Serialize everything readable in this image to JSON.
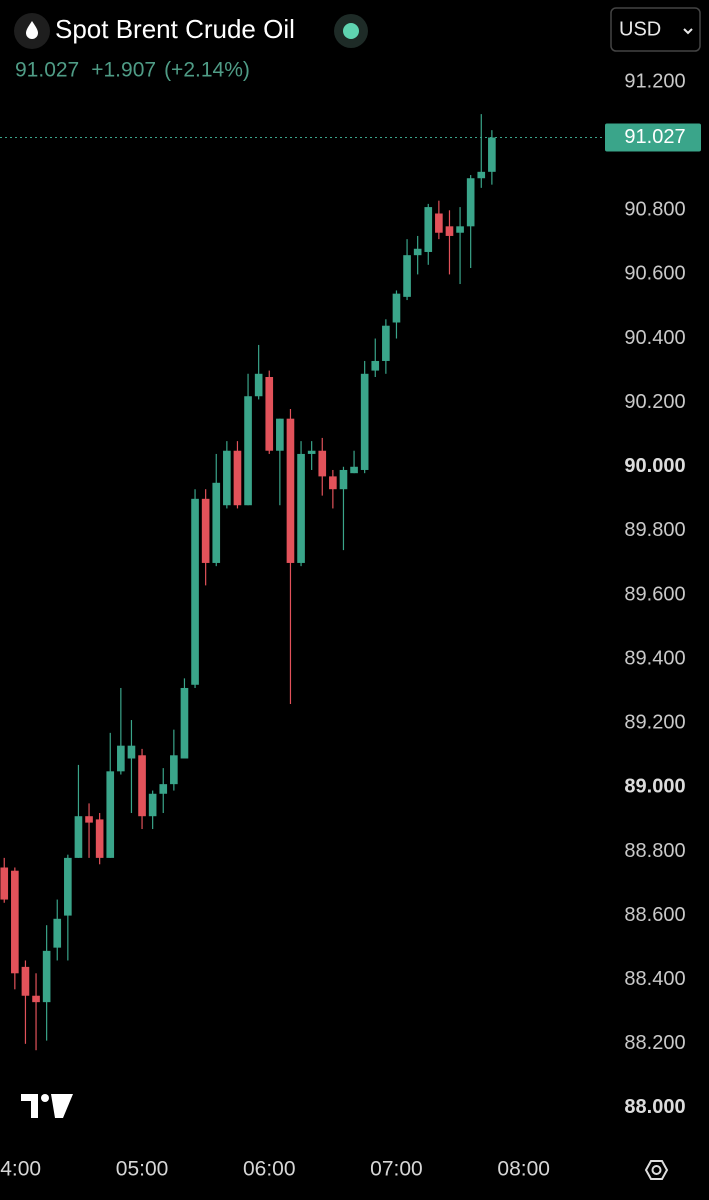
{
  "chart_data": {
    "type": "candlestick",
    "title": "Spot Brent Crude Oil",
    "last": 91.027,
    "change": "+1.907",
    "change_percent": "(+2.14%)",
    "currency": "USD",
    "up_color": "#3aa58a",
    "down_color": "#e2525a",
    "x": [
      "03:55",
      "04:00",
      "04:05",
      "04:10",
      "04:15",
      "04:20",
      "04:25",
      "04:30",
      "04:35",
      "04:40",
      "04:45",
      "04:50",
      "04:55",
      "05:00",
      "05:05",
      "05:10",
      "05:15",
      "05:20",
      "05:25",
      "05:30",
      "05:35",
      "05:40",
      "05:45",
      "05:50",
      "05:55",
      "06:00",
      "06:05",
      "06:10",
      "06:15",
      "06:20",
      "06:25",
      "06:30",
      "06:35",
      "06:40",
      "06:45",
      "06:50",
      "06:55",
      "07:00",
      "07:05",
      "07:10",
      "07:15",
      "07:20",
      "07:25",
      "07:30",
      "07:35",
      "07:40",
      "07:45"
    ],
    "open": [
      88.75,
      88.74,
      88.44,
      88.35,
      88.33,
      88.5,
      88.6,
      88.78,
      88.91,
      88.9,
      88.78,
      89.05,
      89.09,
      89.1,
      88.91,
      88.98,
      89.01,
      89.09,
      89.32,
      89.9,
      89.7,
      89.88,
      90.05,
      89.88,
      90.22,
      90.28,
      90.05,
      90.15,
      89.7,
      90.04,
      90.05,
      89.97,
      89.93,
      89.98,
      89.99,
      90.3,
      90.33,
      90.45,
      90.53,
      90.66,
      90.67,
      90.79,
      90.75,
      90.73,
      90.75,
      90.9,
      90.92
    ],
    "high": [
      88.78,
      88.75,
      88.46,
      88.42,
      88.57,
      88.65,
      88.79,
      89.07,
      88.95,
      88.92,
      89.17,
      89.31,
      89.21,
      89.12,
      88.99,
      89.06,
      89.18,
      89.34,
      89.93,
      89.93,
      90.04,
      90.08,
      90.08,
      90.29,
      90.38,
      90.3,
      90.15,
      90.18,
      90.08,
      90.08,
      90.09,
      89.99,
      90.0,
      90.05,
      90.33,
      90.4,
      90.46,
      90.55,
      90.71,
      90.72,
      90.82,
      90.83,
      90.8,
      90.81,
      90.91,
      91.1,
      91.05
    ],
    "low": [
      88.64,
      88.37,
      88.2,
      88.18,
      88.21,
      88.46,
      88.46,
      88.78,
      88.78,
      88.76,
      88.78,
      89.04,
      88.92,
      88.87,
      88.87,
      88.92,
      88.99,
      89.09,
      89.31,
      89.63,
      89.69,
      89.87,
      89.87,
      89.88,
      90.21,
      90.04,
      89.88,
      89.26,
      89.69,
      89.99,
      89.91,
      89.87,
      89.74,
      89.98,
      89.98,
      90.28,
      90.29,
      90.4,
      90.52,
      90.6,
      90.63,
      90.71,
      90.6,
      90.57,
      90.62,
      90.87,
      90.88
    ],
    "close": [
      88.65,
      88.42,
      88.35,
      88.33,
      88.49,
      88.59,
      88.78,
      88.91,
      88.89,
      88.78,
      89.05,
      89.13,
      89.13,
      88.91,
      88.98,
      89.01,
      89.1,
      89.31,
      89.9,
      89.7,
      89.95,
      90.05,
      89.88,
      90.22,
      90.29,
      90.05,
      90.15,
      89.7,
      90.04,
      90.05,
      89.97,
      89.93,
      89.99,
      90.0,
      90.29,
      90.33,
      90.44,
      90.54,
      90.66,
      90.68,
      90.81,
      90.73,
      90.72,
      90.75,
      90.9,
      90.92,
      91.027
    ],
    "xlim": [
      "03:53",
      "08:36"
    ],
    "xticks": [
      "04:00",
      "05:00",
      "06:00",
      "07:00",
      "08:00"
    ],
    "ylim": [
      87.9,
      91.3
    ],
    "yticks": [
      {
        "value": 88,
        "label": "88.000"
      },
      {
        "value": 88.2,
        "label": "88.200"
      },
      {
        "value": 88.4,
        "label": "88.400"
      },
      {
        "value": 88.6,
        "label": "88.600"
      },
      {
        "value": 88.8,
        "label": "88.800"
      },
      {
        "value": 89,
        "label": "89.000"
      },
      {
        "value": 89.2,
        "label": "89.200"
      },
      {
        "value": 89.4,
        "label": "89.400"
      },
      {
        "value": 89.6,
        "label": "89.600"
      },
      {
        "value": 89.8,
        "label": "89.800"
      },
      {
        "value": 90,
        "label": "90.000"
      },
      {
        "value": 90.2,
        "label": "90.200"
      },
      {
        "value": 90.4,
        "label": "90.400"
      },
      {
        "value": 90.6,
        "label": "90.600"
      },
      {
        "value": 90.8,
        "label": "90.800"
      },
      {
        "value": 91.2,
        "label": "91.200"
      }
    ]
  }
}
